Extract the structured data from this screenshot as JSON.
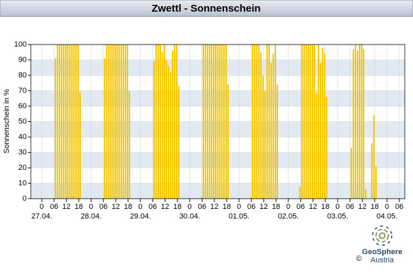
{
  "chart_data": {
    "type": "bar",
    "title": "Zwettl - Sonnenschein",
    "y_label": "Sonnenschein in %",
    "color": "#f5c800",
    "grid": true,
    "xlim": [
      -5.33,
      176.67
    ],
    "ylim": [
      0,
      100
    ],
    "yticks": [
      0,
      10,
      20,
      30,
      40,
      50,
      60,
      70,
      80,
      90,
      100
    ],
    "xticks": [
      {
        "value": 0,
        "label": "0"
      },
      {
        "value": 6,
        "label": "06"
      },
      {
        "value": 12,
        "label": "12"
      },
      {
        "value": 18,
        "label": "18"
      },
      {
        "value": 24,
        "label": "0"
      },
      {
        "value": 30,
        "label": "06"
      },
      {
        "value": 36,
        "label": "12"
      },
      {
        "value": 42,
        "label": "18"
      },
      {
        "value": 48,
        "label": "0"
      },
      {
        "value": 54,
        "label": "06"
      },
      {
        "value": 60,
        "label": "12"
      },
      {
        "value": 66,
        "label": "18"
      },
      {
        "value": 72,
        "label": "0"
      },
      {
        "value": 78,
        "label": "06"
      },
      {
        "value": 84,
        "label": "12"
      },
      {
        "value": 90,
        "label": "18"
      },
      {
        "value": 96,
        "label": "0"
      },
      {
        "value": 102,
        "label": "06"
      },
      {
        "value": 108,
        "label": "12"
      },
      {
        "value": 114,
        "label": "18"
      },
      {
        "value": 120,
        "label": "0"
      },
      {
        "value": 126,
        "label": "06"
      },
      {
        "value": 132,
        "label": "12"
      },
      {
        "value": 138,
        "label": "18"
      },
      {
        "value": 144,
        "label": "0"
      },
      {
        "value": 150,
        "label": "06"
      },
      {
        "value": 156,
        "label": "12"
      },
      {
        "value": 162,
        "label": "18"
      },
      {
        "value": 168,
        "label": "0"
      },
      {
        "value": 174,
        "label": "06"
      }
    ],
    "date_labels": [
      {
        "value": 0,
        "label": "27.04."
      },
      {
        "value": 24,
        "label": "28.04."
      },
      {
        "value": 48,
        "label": "29.04."
      },
      {
        "value": 72,
        "label": "30.04."
      },
      {
        "value": 96,
        "label": "01.05."
      },
      {
        "value": 120,
        "label": "02.05."
      },
      {
        "value": 144,
        "label": "03.05."
      },
      {
        "value": 168,
        "label": "04.05."
      }
    ],
    "x": [
      6,
      7,
      8,
      9,
      10,
      11,
      12,
      13,
      14,
      15,
      16,
      17,
      18,
      30,
      31,
      32,
      33,
      34,
      35,
      36,
      37,
      38,
      39,
      40,
      41,
      42,
      54,
      55,
      56,
      57,
      58,
      59,
      60,
      61,
      62,
      63,
      64,
      65,
      66,
      77,
      78,
      79,
      80,
      81,
      82,
      83,
      84,
      85,
      86,
      87,
      88,
      89,
      90,
      101,
      102,
      103,
      104,
      105,
      106,
      107,
      108,
      109,
      110,
      111,
      112,
      113,
      114,
      125,
      126,
      127,
      128,
      129,
      130,
      131,
      132,
      133,
      134,
      135,
      136,
      137,
      138,
      150,
      151,
      152,
      153,
      154,
      155,
      156,
      157,
      158,
      159,
      160,
      161,
      162
    ],
    "values": [
      91,
      100,
      100,
      100,
      100,
      100,
      100,
      100,
      100,
      100,
      100,
      100,
      69,
      91,
      100,
      100,
      100,
      100,
      100,
      100,
      100,
      100,
      100,
      100,
      100,
      70,
      89,
      100,
      100,
      100,
      95,
      100,
      90,
      86,
      82,
      96,
      100,
      100,
      73,
      1,
      100,
      100,
      100,
      100,
      100,
      100,
      100,
      100,
      100,
      100,
      100,
      100,
      74,
      1,
      100,
      100,
      100,
      100,
      95,
      80,
      70,
      100,
      100,
      88,
      94,
      100,
      74,
      8,
      100,
      100,
      100,
      100,
      100,
      100,
      100,
      68,
      100,
      88,
      98,
      94,
      66,
      33,
      97,
      100,
      96,
      100,
      100,
      97,
      6,
      0,
      0,
      36,
      54,
      21
    ]
  },
  "logo": {
    "name": "GeoSphere",
    "sub": "Austria",
    "copyright": "©"
  }
}
